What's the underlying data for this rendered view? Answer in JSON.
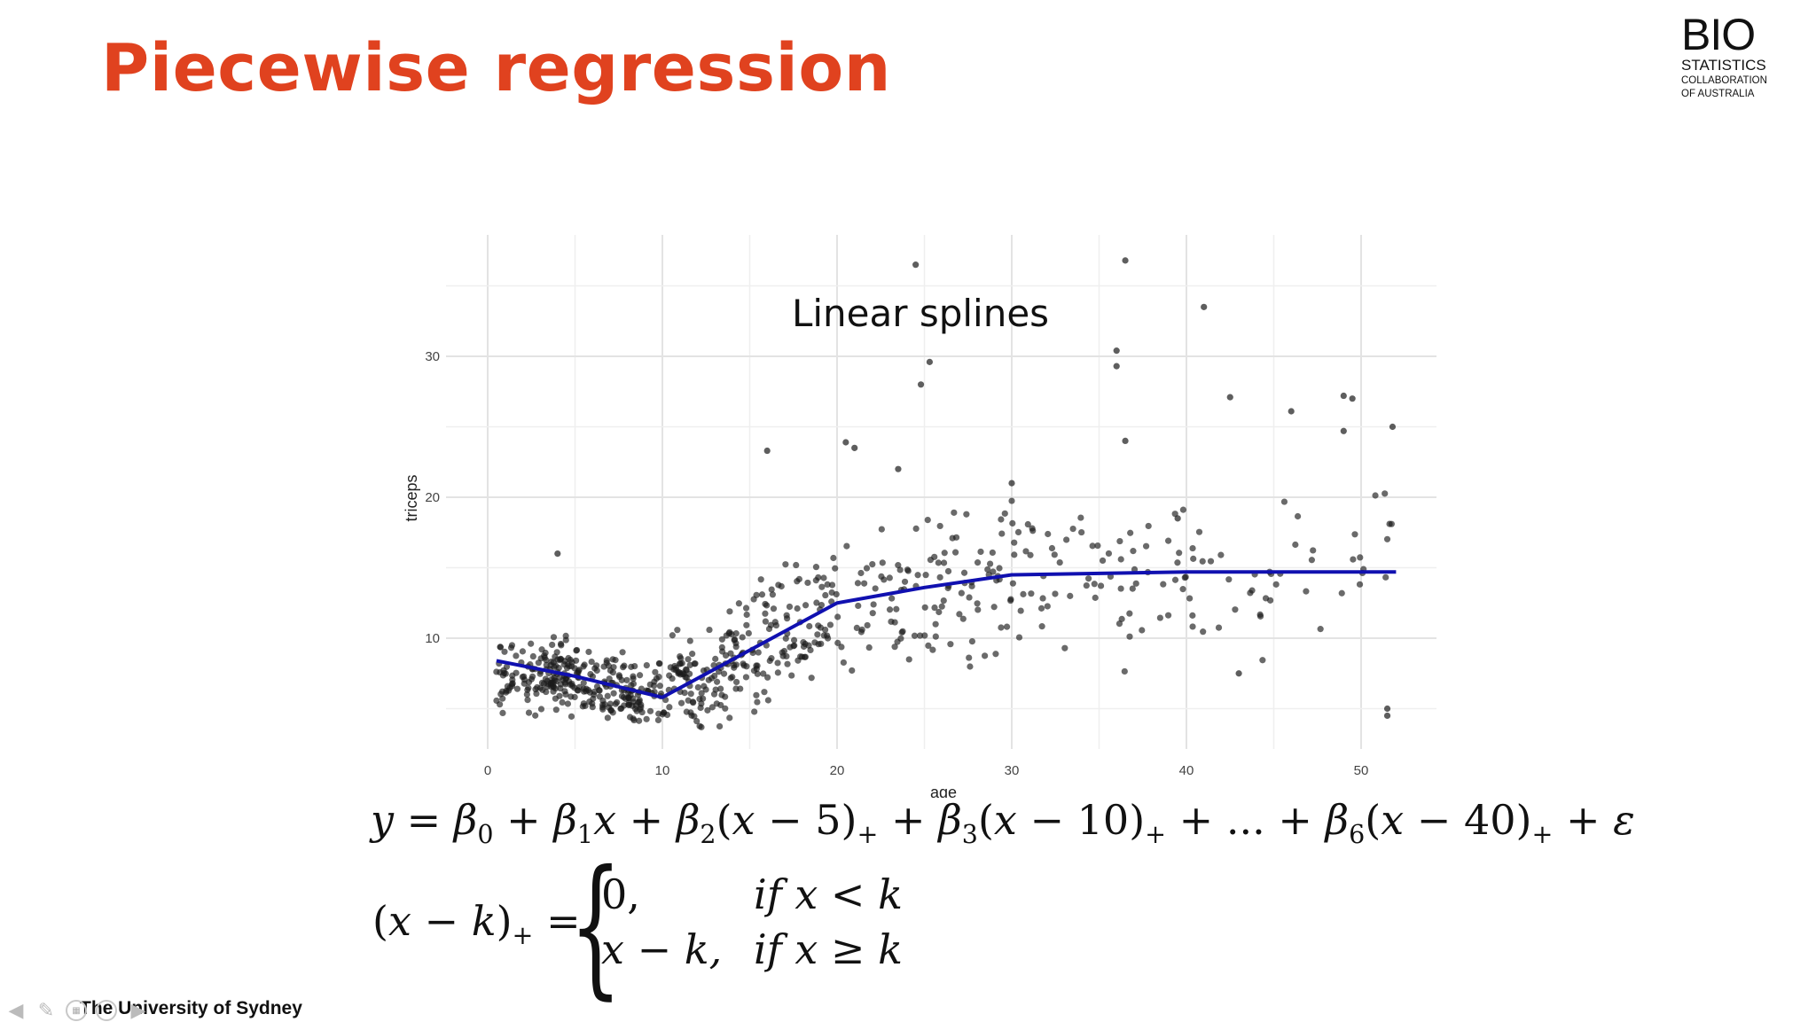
{
  "slide": {
    "title": "Piecewise regression"
  },
  "logo": {
    "line1": "BIO",
    "line2": "STATISTICS",
    "line3": "COLLABORATION",
    "line4": "OF AUSTRALIA"
  },
  "footer": {
    "institution": "The University of Sydney"
  },
  "nav_icons": [
    "arrow-left-icon",
    "pencil-icon",
    "slides-icon",
    "more-icon",
    "arrow-right-icon"
  ],
  "equations": {
    "model": "y = β0 + β1x + β2(x − 5)+ + β3(x − 10)+ + ... + β6(x − 40)+ + ε",
    "hinge_lhs": "(x − k)+ =",
    "case1_value": "0,",
    "case1_condition": "if x < k",
    "case2_value": "x − k,",
    "case2_condition": "if x ≥ k"
  },
  "chart_data": {
    "type": "scatter",
    "title": "Linear splines",
    "xlabel": "age",
    "ylabel": "triceps",
    "xlim": [
      -1,
      54
    ],
    "ylim": [
      2,
      38
    ],
    "xticks": [
      0,
      10,
      20,
      30,
      40,
      50
    ],
    "yticks": [
      10,
      20,
      30
    ],
    "grid": true,
    "colors": {
      "points": "#1a1a1a",
      "fit_line": "#1010b0"
    },
    "fit_line": {
      "knots": [
        5,
        10,
        20,
        30,
        40
      ],
      "x": [
        0.5,
        5,
        10,
        20,
        25,
        30,
        40,
        52
      ],
      "y": [
        8.4,
        7.3,
        5.8,
        12.5,
        13.6,
        14.5,
        14.7,
        14.7
      ]
    },
    "points_outliers": {
      "x": [
        24.5,
        36.5,
        41,
        25.3,
        24.8,
        36,
        36,
        49,
        46,
        42.5,
        20.5,
        21,
        16,
        23.5,
        30,
        36.5,
        39.5,
        43,
        49,
        49.5,
        51.5,
        51.5,
        51.8,
        4
      ],
      "y": [
        36.5,
        36.8,
        33.5,
        29.6,
        28.0,
        30.4,
        29.3,
        27.2,
        26.1,
        27.1,
        23.9,
        23.5,
        23.3,
        22.0,
        21.0,
        24.0,
        18.5,
        7.5,
        24.7,
        27.0,
        5.0,
        4.5,
        25.0,
        16.0
      ]
    },
    "points_bands": [
      {
        "x_from": 0.5,
        "x_to": 5,
        "y_center": [
          7.8,
          7.0
        ],
        "y_spread": 2.2,
        "n": 150
      },
      {
        "x_from": 5,
        "x_to": 10,
        "y_center": [
          7.0,
          5.7
        ],
        "y_spread": 2.0,
        "n": 150
      },
      {
        "x_from": 10,
        "x_to": 15,
        "y_center": [
          5.8,
          8.8
        ],
        "y_spread": 3.0,
        "n": 130
      },
      {
        "x_from": 15,
        "x_to": 20,
        "y_center": [
          8.8,
          12.2
        ],
        "y_spread": 4.0,
        "n": 100
      },
      {
        "x_from": 20,
        "x_to": 30,
        "y_center": [
          12.5,
          14.3
        ],
        "y_spread": 5.0,
        "n": 110
      },
      {
        "x_from": 30,
        "x_to": 40,
        "y_center": [
          14.3,
          14.6
        ],
        "y_spread": 5.0,
        "n": 70
      },
      {
        "x_from": 40,
        "x_to": 52,
        "y_center": [
          14.6,
          14.6
        ],
        "y_spread": 5.0,
        "n": 45
      }
    ]
  }
}
